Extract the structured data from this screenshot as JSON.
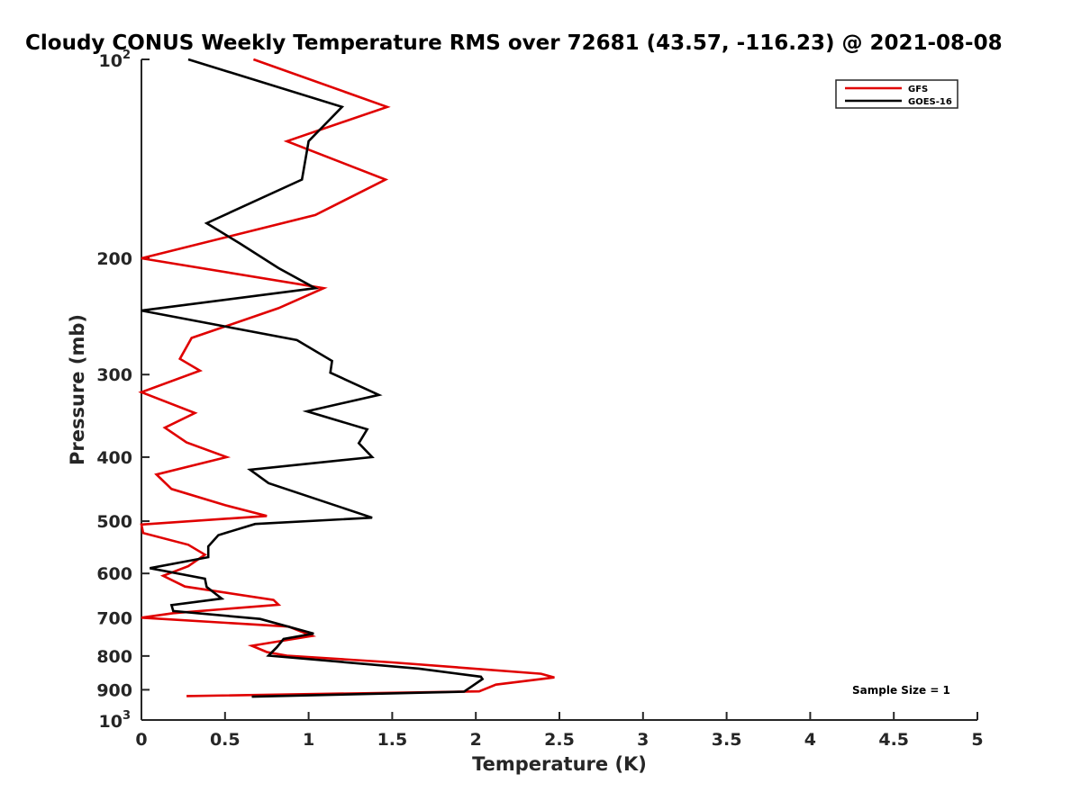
{
  "chart_data": {
    "type": "line",
    "title": "Cloudy CONUS Weekly Temperature RMS over 72681 (43.57, -116.23) @ 2021-08-08",
    "xlabel": "Temperature (K)",
    "ylabel": "Pressure (mb)",
    "xlim": [
      0,
      5
    ],
    "ylim": [
      100,
      1000
    ],
    "y_scale": "log",
    "y_reversed": true,
    "x_ticks": [
      "0",
      "0.5",
      "1",
      "1.5",
      "2",
      "2.5",
      "3",
      "3.5",
      "4",
      "4.5",
      "5"
    ],
    "y_ticks": [
      {
        "value": 100,
        "base": "10",
        "exp": "2"
      },
      {
        "value": 200,
        "label": "200"
      },
      {
        "value": 300,
        "label": "300"
      },
      {
        "value": 400,
        "label": "400"
      },
      {
        "value": 500,
        "label": "500"
      },
      {
        "value": 600,
        "label": "600"
      },
      {
        "value": 700,
        "label": "700"
      },
      {
        "value": 800,
        "label": "800"
      },
      {
        "value": 900,
        "label": "900"
      },
      {
        "value": 1000,
        "base": "10",
        "exp": "3"
      }
    ],
    "legend_position": "top-right",
    "grid": false,
    "annotation": "Sample Size = 1",
    "series": [
      {
        "name": "GFS",
        "color": "#e00000",
        "x": [
          0.67,
          1.47,
          0.87,
          1.46,
          1.04,
          0.0,
          1.09,
          0.82,
          0.3,
          0.23,
          0.35,
          0.0,
          0.32,
          0.14,
          0.27,
          0.51,
          0.09,
          0.18,
          0.5,
          0.75,
          0.0,
          0.01,
          0.28,
          0.38,
          0.28,
          0.13,
          0.26,
          0.79,
          0.82,
          0.19,
          0.0,
          0.88,
          1.02,
          0.66,
          0.75,
          0.87,
          1.5,
          2.39,
          2.47,
          2.12,
          2.02,
          0.27
        ],
        "y": [
          100,
          118,
          133,
          152,
          172,
          200,
          222,
          238,
          264,
          284,
          296,
          319,
          343,
          361,
          380,
          400,
          425,
          447,
          473,
          491,
          506,
          521,
          543,
          562,
          585,
          605,
          628,
          658,
          669,
          689,
          700,
          722,
          746,
          772,
          789,
          799,
          818,
          851,
          862,
          884,
          905,
          920
        ]
      },
      {
        "name": "GOES-16",
        "color": "#000000",
        "x": [
          0.28,
          1.2,
          1.0,
          0.96,
          0.39,
          0.59,
          0.82,
          1.04,
          0.0,
          0.93,
          1.14,
          1.13,
          1.42,
          0.99,
          1.35,
          1.3,
          1.38,
          0.65,
          0.76,
          1.38,
          0.68,
          0.46,
          0.4,
          0.4,
          0.05,
          0.38,
          0.39,
          0.48,
          0.18,
          0.19,
          0.71,
          1.03,
          0.85,
          0.81,
          0.76,
          1.66,
          2.03,
          2.04,
          1.93,
          0.66
        ],
        "y": [
          100,
          118,
          133,
          152,
          177,
          190,
          207,
          222,
          240,
          266,
          286,
          298,
          322,
          341,
          363,
          381,
          400,
          418,
          438,
          494,
          505,
          525,
          546,
          567,
          589,
          611,
          629,
          655,
          670,
          684,
          703,
          740,
          754,
          776,
          799,
          836,
          860,
          867,
          906,
          922
        ]
      }
    ]
  }
}
